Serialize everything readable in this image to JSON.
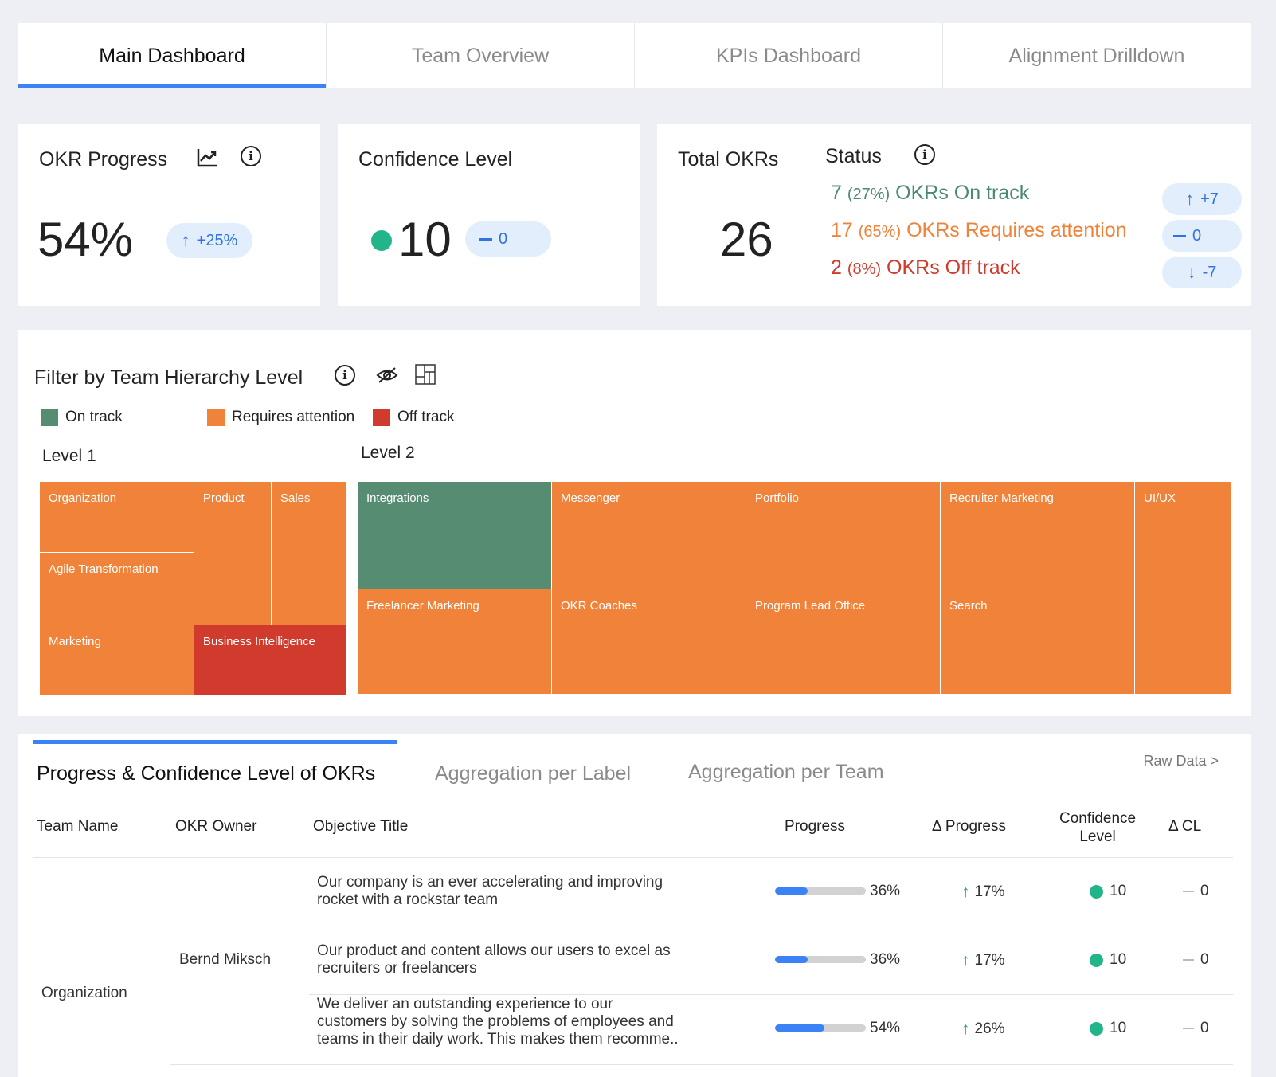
{
  "tabs": [
    {
      "label": "Main Dashboard"
    },
    {
      "label": "Team Overview"
    },
    {
      "label": "KPIs Dashboard"
    },
    {
      "label": "Alignment Drilldown"
    }
  ],
  "okr_progress": {
    "title": "OKR Progress",
    "value": "54%",
    "delta": "+25%"
  },
  "confidence": {
    "title": "Confidence Level",
    "value": "10",
    "delta": "0"
  },
  "total_okrs": {
    "title": "Total OKRs",
    "value": "26",
    "status_title": "Status",
    "lines": [
      {
        "count": "7",
        "pct": "(27%)",
        "label": "OKRs On track",
        "color": "#4a8a6d",
        "delta": "+7",
        "dir": "up"
      },
      {
        "count": "17",
        "pct": "(65%)",
        "label": "OKRs Requires attention",
        "color": "#f0823a",
        "delta": "0",
        "dir": "flat"
      },
      {
        "count": "2",
        "pct": "(8%)",
        "label": "OKRs Off track",
        "color": "#cf3a2c",
        "delta": "-7",
        "dir": "down"
      }
    ]
  },
  "filter": {
    "title": "Filter by Team Hierarchy Level",
    "legend": [
      {
        "label": "On track",
        "color": "#568d72"
      },
      {
        "label": "Requires attention",
        "color": "#f0823a"
      },
      {
        "label": "Off track",
        "color": "#d13b2e"
      }
    ],
    "level1_label": "Level 1",
    "level2_label": "Level 2",
    "level1": [
      "Organization",
      "Product",
      "Sales",
      "Agile Transformation",
      "Marketing",
      "Business Intelligence"
    ],
    "level2": [
      "Integrations",
      "Messenger",
      "Portfolio",
      "Recruiter Marketing",
      "UI/UX",
      "Freelancer Marketing",
      "OKR Coaches",
      "Program Lead Office",
      "Search"
    ]
  },
  "table_section": {
    "subtabs": [
      "Progress & Confidence Level of OKRs",
      "Aggregation per Label",
      "Aggregation per Team"
    ],
    "raw_data": "Raw Data >",
    "headers": {
      "team": "Team Name",
      "owner": "OKR Owner",
      "objective": "Objective Title",
      "progress": "Progress",
      "dprogress": "Δ Progress",
      "confidence_1": "Confidence",
      "confidence_2": "Level",
      "dcl": "Δ CL"
    },
    "team": "Organization",
    "owner": "Bernd Miksch",
    "rows": [
      {
        "objective": "Our company is an ever accelerating and improving rocket with a rockstar team",
        "progress": 36,
        "progress_text": "36%",
        "dprogress": "17%",
        "cl": "10",
        "dcl": "0"
      },
      {
        "objective": "Our product and content allows our users to excel as recruiters or freelancers",
        "progress": 36,
        "progress_text": "36%",
        "dprogress": "17%",
        "cl": "10",
        "dcl": "0"
      },
      {
        "objective": "We deliver an outstanding experience to our customers by solving the problems of employees and teams in their daily work. This makes them recomme..",
        "progress": 54,
        "progress_text": "54%",
        "dprogress": "26%",
        "cl": "10",
        "dcl": "0"
      }
    ]
  }
}
